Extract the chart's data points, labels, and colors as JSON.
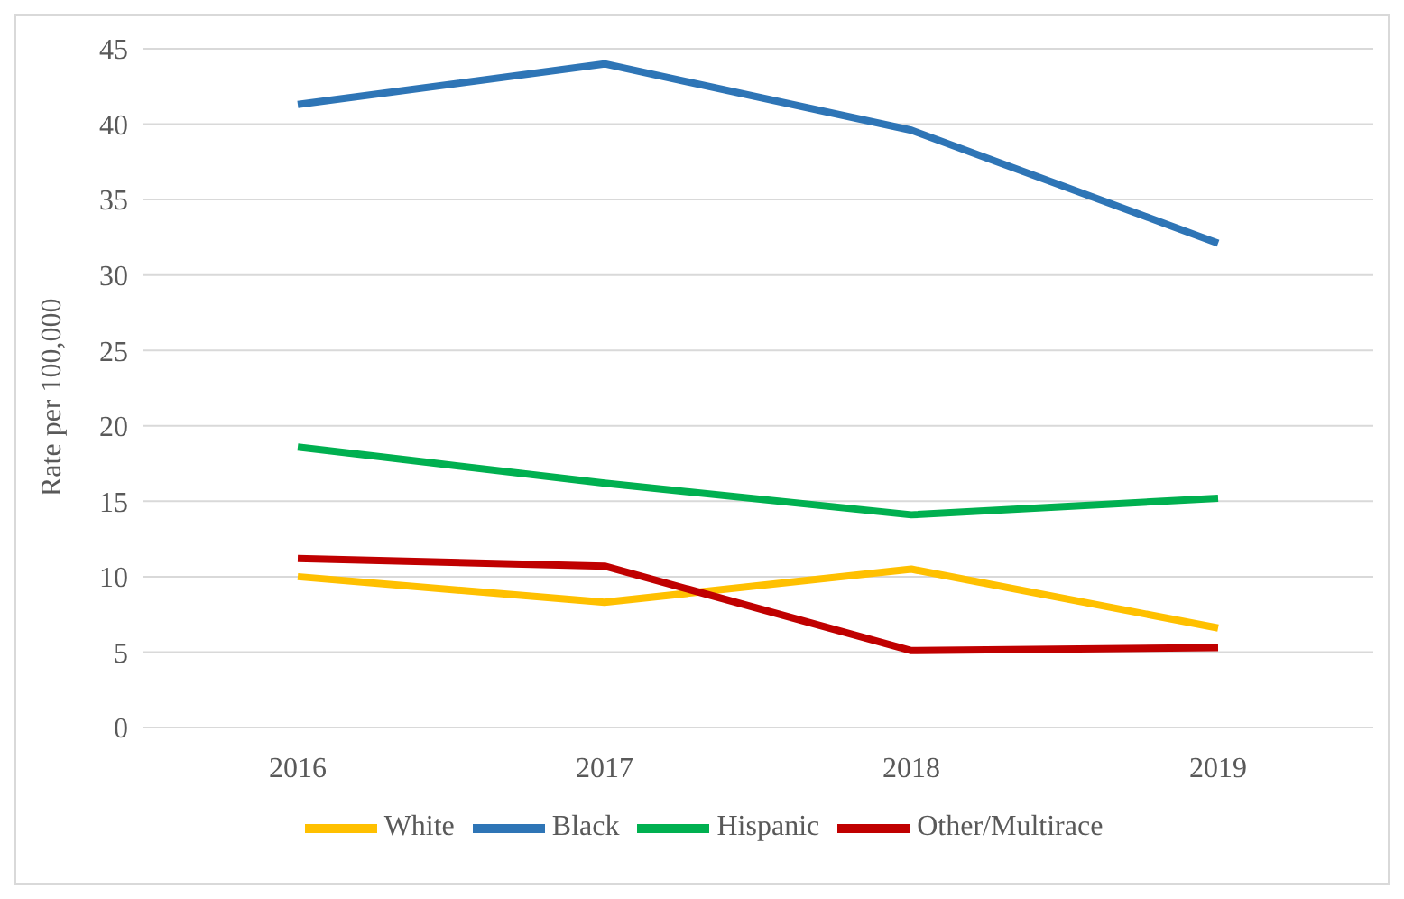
{
  "chart_data": {
    "type": "line",
    "ylabel": "Rate per 100,000",
    "categories": [
      "2016",
      "2017",
      "2018",
      "2019"
    ],
    "series": [
      {
        "name": "White",
        "color": "#ffc000",
        "values": [
          10.0,
          8.3,
          10.5,
          6.6
        ]
      },
      {
        "name": "Black",
        "color": "#2e75b6",
        "values": [
          41.3,
          44.0,
          39.6,
          32.1
        ]
      },
      {
        "name": "Hispanic",
        "color": "#00b050",
        "values": [
          18.6,
          16.2,
          14.1,
          15.2
        ]
      },
      {
        "name": "Other/Multirace",
        "color": "#c00000",
        "values": [
          11.2,
          10.7,
          5.1,
          5.3
        ]
      }
    ],
    "ylim": [
      0,
      45
    ],
    "yticks": [
      0,
      5,
      10,
      15,
      20,
      25,
      30,
      35,
      40,
      45
    ],
    "grid": "y",
    "legend": "bottom",
    "marker": "none",
    "line_style": "solid"
  }
}
